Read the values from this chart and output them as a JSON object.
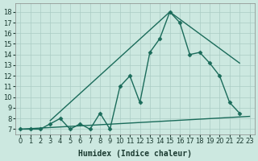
{
  "xlabel": "Humidex (Indice chaleur)",
  "bg_color": "#cce8e0",
  "grid_color": "#aaccC4",
  "line_color": "#1a6b5a",
  "xlim": [
    -0.5,
    23.5
  ],
  "ylim": [
    6.5,
    18.8
  ],
  "xticks": [
    0,
    1,
    2,
    3,
    4,
    5,
    6,
    7,
    8,
    9,
    10,
    11,
    12,
    13,
    14,
    15,
    16,
    17,
    18,
    19,
    20,
    21,
    22,
    23
  ],
  "yticks": [
    7,
    8,
    9,
    10,
    11,
    12,
    13,
    14,
    15,
    16,
    17,
    18
  ],
  "main_x": [
    0,
    1,
    2,
    3,
    4,
    5,
    6,
    7,
    8,
    9,
    10,
    11,
    12,
    13,
    14,
    15,
    16,
    17,
    18,
    19,
    20,
    21,
    22
  ],
  "main_y": [
    7,
    7,
    7,
    7.5,
    8,
    7,
    7.5,
    7,
    8.5,
    7,
    11,
    12,
    9.5,
    14.2,
    15.5,
    18,
    17,
    14,
    14.2,
    13.2,
    12,
    9.5,
    8.5
  ],
  "trend1_x": [
    0,
    23
  ],
  "trend1_y": [
    7.0,
    8.2
  ],
  "trend2_x": [
    3,
    15,
    22
  ],
  "trend2_y": [
    7.8,
    18.0,
    13.2
  ],
  "font_size": 7,
  "marker_size": 2.5,
  "line_width": 1.0
}
